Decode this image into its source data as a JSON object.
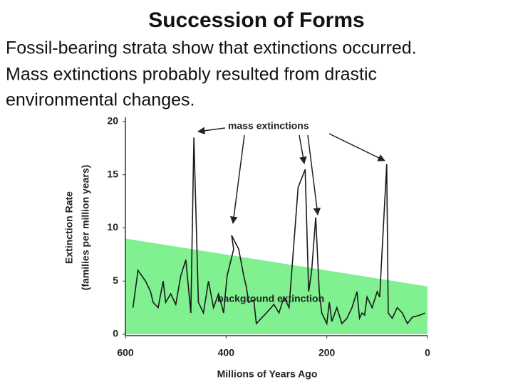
{
  "header": {
    "title": "Succession of Forms",
    "lines": [
      "Fossil-bearing strata show that extinctions occurred.",
      "Mass extinctions probably resulted from drastic",
      "environmental changes."
    ]
  },
  "chart_data": {
    "type": "line",
    "x": [
      585,
      575,
      560,
      550,
      545,
      535,
      525,
      520,
      510,
      500,
      490,
      480,
      470,
      464,
      455,
      445,
      435,
      425,
      415,
      405,
      398,
      385,
      389,
      375,
      365,
      360,
      355,
      345,
      340,
      320,
      305,
      295,
      285,
      275,
      257,
      243,
      236,
      230,
      222,
      215,
      210,
      200,
      195,
      190,
      180,
      170,
      160,
      150,
      140,
      135,
      130,
      125,
      120,
      110,
      100,
      95,
      81,
      78,
      70,
      60,
      50,
      40,
      30,
      15,
      5
    ],
    "series": [
      {
        "name": "Extinction Rate",
        "color": "#1a1a1a",
        "values": [
          2.5,
          6,
          5,
          4,
          3,
          2.5,
          5,
          3,
          3.8,
          2.8,
          5.5,
          7,
          2,
          18.5,
          3,
          2,
          5,
          2.5,
          3.8,
          2,
          5.5,
          8,
          9.3,
          8,
          5.5,
          4.5,
          3,
          3.2,
          1,
          2,
          2.8,
          2,
          3.5,
          2.5,
          13.8,
          15.5,
          4,
          6,
          11,
          4,
          2,
          1,
          3,
          1.2,
          2.5,
          1,
          1.5,
          2.5,
          4,
          1.5,
          2,
          1.8,
          3.5,
          2.5,
          4,
          3.5,
          16,
          2,
          1.5,
          2.5,
          2,
          1,
          1.6,
          1.8,
          2
        ]
      }
    ],
    "background": {
      "x": [
        600,
        0
      ],
      "values": [
        9,
        4.5
      ],
      "color": "#80f090"
    },
    "xlim": [
      600,
      0
    ],
    "xticks": [
      600,
      400,
      200,
      0
    ],
    "ylim": [
      0,
      20
    ],
    "yticks": [
      0,
      5,
      10,
      15,
      20
    ],
    "xlabel": "Millions of Years Ago",
    "ylabel": [
      "Extinction Rate",
      "(families per million years)"
    ],
    "annotations": [
      "mass extinctions",
      "background extinction"
    ]
  }
}
